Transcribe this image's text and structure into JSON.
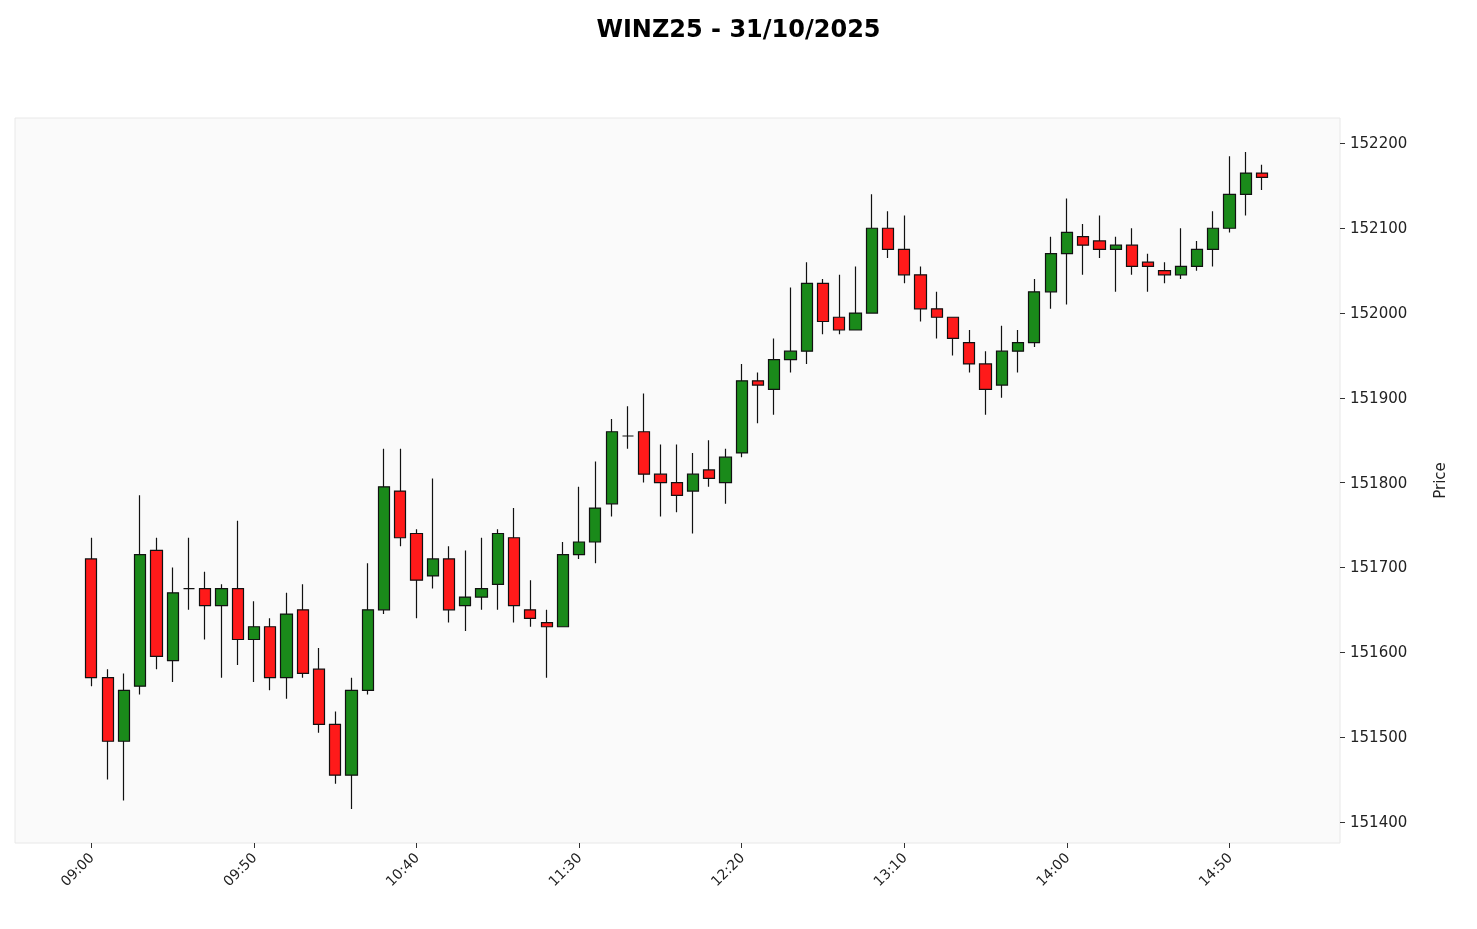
{
  "chart_data": {
    "type": "candlestick",
    "title": "WINZ25 - 31/10/2025",
    "ylabel": "Price",
    "categories": [
      "09:00",
      null,
      null,
      null,
      null,
      null,
      null,
      null,
      null,
      null,
      "09:50",
      null,
      null,
      null,
      null,
      null,
      null,
      null,
      null,
      null,
      "10:40",
      null,
      null,
      null,
      null,
      null,
      null,
      null,
      null,
      null,
      "11:30",
      null,
      null,
      null,
      null,
      null,
      null,
      null,
      null,
      null,
      "12:20",
      null,
      null,
      null,
      null,
      null,
      null,
      null,
      null,
      null,
      "13:10",
      null,
      null,
      null,
      null,
      null,
      null,
      null,
      null,
      null,
      "14:00",
      null,
      null,
      null,
      null,
      null,
      null,
      null,
      null,
      null,
      "14:50",
      null,
      null
    ],
    "ohlc": [
      [
        151710,
        151735,
        151560,
        151570
      ],
      [
        151570,
        151580,
        151450,
        151495
      ],
      [
        151495,
        151575,
        151425,
        151555
      ],
      [
        151560,
        151785,
        151550,
        151715
      ],
      [
        151720,
        151735,
        151580,
        151595
      ],
      [
        151590,
        151700,
        151565,
        151670
      ],
      [
        151675,
        151735,
        151650,
        151675
      ],
      [
        151675,
        151695,
        151615,
        151655
      ],
      [
        151655,
        151680,
        151570,
        151675
      ],
      [
        151675,
        151755,
        151585,
        151615
      ],
      [
        151615,
        151660,
        151565,
        151630
      ],
      [
        151630,
        151640,
        151555,
        151570
      ],
      [
        151570,
        151670,
        151545,
        151645
      ],
      [
        151650,
        151680,
        151570,
        151575
      ],
      [
        151580,
        151605,
        151505,
        151515
      ],
      [
        151515,
        151530,
        151445,
        151455
      ],
      [
        151455,
        151570,
        151415,
        151555
      ],
      [
        151555,
        151705,
        151550,
        151650
      ],
      [
        151650,
        151840,
        151645,
        151795
      ],
      [
        151790,
        151840,
        151725,
        151735
      ],
      [
        151740,
        151745,
        151640,
        151685
      ],
      [
        151690,
        151805,
        151675,
        151710
      ],
      [
        151710,
        151725,
        151635,
        151650
      ],
      [
        151655,
        151720,
        151625,
        151665
      ],
      [
        151665,
        151735,
        151650,
        151675
      ],
      [
        151680,
        151745,
        151650,
        151740
      ],
      [
        151735,
        151770,
        151635,
        151655
      ],
      [
        151650,
        151685,
        151630,
        151640
      ],
      [
        151635,
        151650,
        151570,
        151630
      ],
      [
        151630,
        151730,
        151630,
        151715
      ],
      [
        151715,
        151795,
        151710,
        151730
      ],
      [
        151730,
        151825,
        151705,
        151770
      ],
      [
        151775,
        151875,
        151760,
        151860
      ],
      [
        151855,
        151890,
        151840,
        151855
      ],
      [
        151860,
        151905,
        151800,
        151810
      ],
      [
        151810,
        151845,
        151760,
        151800
      ],
      [
        151800,
        151845,
        151765,
        151785
      ],
      [
        151790,
        151835,
        151740,
        151810
      ],
      [
        151815,
        151850,
        151795,
        151805
      ],
      [
        151800,
        151840,
        151775,
        151830
      ],
      [
        151835,
        151940,
        151830,
        151920
      ],
      [
        151920,
        151930,
        151870,
        151915
      ],
      [
        151910,
        151970,
        151880,
        151945
      ],
      [
        151945,
        152030,
        151930,
        151955
      ],
      [
        151955,
        152060,
        151940,
        152035
      ],
      [
        152035,
        152040,
        151975,
        151990
      ],
      [
        151995,
        152045,
        151975,
        151980
      ],
      [
        151980,
        152055,
        151980,
        152000
      ],
      [
        152000,
        152140,
        152000,
        152100
      ],
      [
        152100,
        152120,
        152065,
        152075
      ],
      [
        152075,
        152115,
        152035,
        152045
      ],
      [
        152045,
        152055,
        151990,
        152005
      ],
      [
        152005,
        152025,
        151970,
        151995
      ],
      [
        151995,
        151995,
        151950,
        151970
      ],
      [
        151965,
        151980,
        151930,
        151940
      ],
      [
        151940,
        151955,
        151880,
        151910
      ],
      [
        151915,
        151985,
        151900,
        151955
      ],
      [
        151955,
        151980,
        151930,
        151965
      ],
      [
        151965,
        152040,
        151960,
        152025
      ],
      [
        152025,
        152090,
        152005,
        152070
      ],
      [
        152070,
        152135,
        152010,
        152095
      ],
      [
        152090,
        152105,
        152045,
        152080
      ],
      [
        152085,
        152115,
        152065,
        152075
      ],
      [
        152075,
        152090,
        152025,
        152080
      ],
      [
        152080,
        152100,
        152045,
        152055
      ],
      [
        152060,
        152070,
        152025,
        152055
      ],
      [
        152050,
        152060,
        152035,
        152045
      ],
      [
        152045,
        152100,
        152040,
        152055
      ],
      [
        152055,
        152085,
        152050,
        152075
      ],
      [
        152075,
        152120,
        152055,
        152100
      ],
      [
        152100,
        152185,
        152095,
        152140
      ],
      [
        152140,
        152190,
        152115,
        152165
      ],
      [
        152165,
        152175,
        152145,
        152160
      ]
    ],
    "colors": [
      "#ff1a1a",
      "#ff1a1a",
      "#1a8a1a",
      "#1a8a1a",
      "#ff1a1a",
      "#1a8a1a",
      "#111111",
      "#ff1a1a",
      "#1a8a1a",
      "#ff1a1a",
      "#1a8a1a",
      "#ff1a1a",
      "#1a8a1a",
      "#ff1a1a",
      "#ff1a1a",
      "#ff1a1a",
      "#1a8a1a",
      "#1a8a1a",
      "#1a8a1a",
      "#ff1a1a",
      "#ff1a1a",
      "#1a8a1a",
      "#ff1a1a",
      "#1a8a1a",
      "#1a8a1a",
      "#1a8a1a",
      "#ff1a1a",
      "#ff1a1a",
      "#ff1a1a",
      "#1a8a1a",
      "#1a8a1a",
      "#1a8a1a",
      "#1a8a1a",
      "#111111",
      "#ff1a1a",
      "#ff1a1a",
      "#ff1a1a",
      "#1a8a1a",
      "#ff1a1a",
      "#1a8a1a",
      "#1a8a1a",
      "#ff1a1a",
      "#1a8a1a",
      "#1a8a1a",
      "#1a8a1a",
      "#ff1a1a",
      "#ff1a1a",
      "#1a8a1a",
      "#1a8a1a",
      "#ff1a1a",
      "#ff1a1a",
      "#ff1a1a",
      "#ff1a1a",
      "#ff1a1a",
      "#ff1a1a",
      "#ff1a1a",
      "#1a8a1a",
      "#1a8a1a",
      "#1a8a1a",
      "#1a8a1a",
      "#1a8a1a",
      "#ff1a1a",
      "#ff1a1a",
      "#1a8a1a",
      "#ff1a1a",
      "#ff1a1a",
      "#ff1a1a",
      "#1a8a1a",
      "#1a8a1a",
      "#1a8a1a",
      "#1a8a1a",
      "#1a8a1a",
      "#ff1a1a"
    ],
    "ylim": [
      151375,
      152230
    ],
    "yticks": [
      151400,
      151500,
      151600,
      151700,
      151800,
      151900,
      152000,
      152100,
      152200
    ],
    "grid": false
  }
}
